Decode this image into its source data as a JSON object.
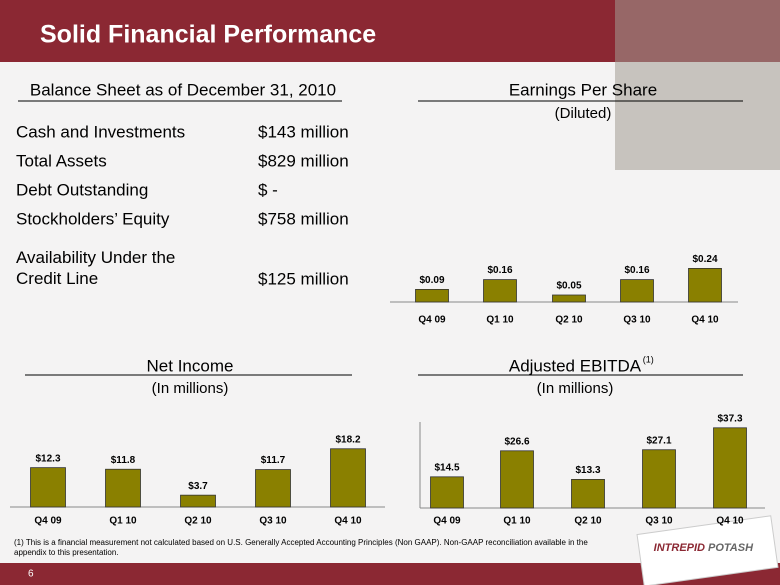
{
  "header": {
    "title": "Solid Financial Performance"
  },
  "balance_sheet": {
    "title": "Balance Sheet as of December 31, 2010",
    "rows": [
      [
        "Cash and Investments",
        "$143  million"
      ],
      [
        "Total Assets",
        "$829  million"
      ],
      [
        "Debt Outstanding",
        "$  -"
      ],
      [
        "Stockholders’ Equity",
        "$758  million"
      ],
      [
        "Availability Under the Credit Line",
        "$125  million"
      ]
    ]
  },
  "chart_data": [
    {
      "type": "bar",
      "title": "Earnings Per Share",
      "subtitle": "(Diluted)",
      "categories": [
        "Q4 09",
        "Q1 10",
        "Q2 10",
        "Q3 10",
        "Q4 10"
      ],
      "values": [
        0.09,
        0.16,
        0.05,
        0.16,
        0.24
      ],
      "value_labels": [
        "$0.09",
        "$0.16",
        "$0.05",
        "$0.16",
        "$0.24"
      ],
      "color": "#8a8000",
      "ylim": [
        0,
        0.4
      ]
    },
    {
      "type": "bar",
      "title": "Net Income",
      "subtitle": "(In millions)",
      "categories": [
        "Q4 09",
        "Q1 10",
        "Q2 10",
        "Q3 10",
        "Q4 10"
      ],
      "values": [
        12.3,
        11.8,
        3.7,
        11.7,
        18.2
      ],
      "value_labels": [
        "$12.3",
        "$11.8",
        "$3.7",
        "$11.7",
        "$18.2"
      ],
      "color": "#8a8000",
      "ylim": [
        0,
        25
      ]
    },
    {
      "type": "bar",
      "title": "Adjusted EBITDA",
      "title_note": "(1)",
      "subtitle": "(In millions)",
      "categories": [
        "Q4 09",
        "Q1 10",
        "Q2 10",
        "Q3 10",
        "Q4 10"
      ],
      "values": [
        14.5,
        26.6,
        13.3,
        27.1,
        37.3
      ],
      "value_labels": [
        "$14.5",
        "$26.6",
        "$13.3",
        "$27.1",
        "$37.3"
      ],
      "color": "#8a8000",
      "ylim": [
        0,
        40
      ]
    }
  ],
  "footnote": [
    "(1)   This is a financial  measurement not calculated based on U.S. Generally Accepted Accounting Principles (Non GAAP).   Non-GAAP reconciliation available in the",
    "appendix to this presentation."
  ],
  "page_number": "6",
  "logo": [
    "INTREPID",
    "POTASH"
  ]
}
